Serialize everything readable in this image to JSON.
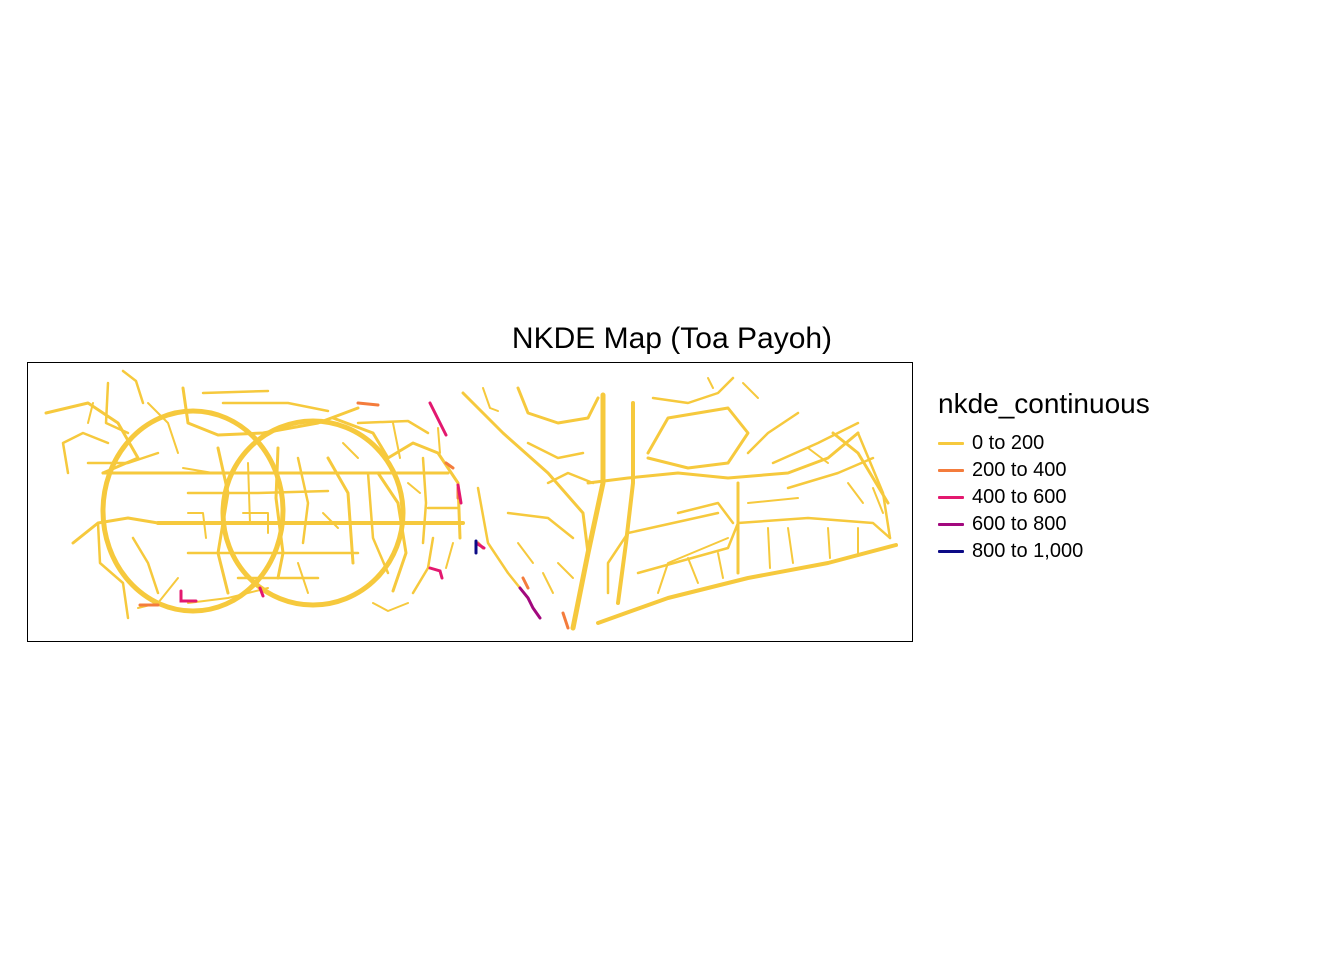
{
  "title": "NKDE Map (Toa Payoh)",
  "legend": {
    "title": "nkde_continuous",
    "items": [
      {
        "label": "0 to 200",
        "color": "#f6c93d"
      },
      {
        "label": "200 to 400",
        "color": "#f47c3c"
      },
      {
        "label": "400 to 600",
        "color": "#e3186f"
      },
      {
        "label": "600 to 800",
        "color": "#a2087e"
      },
      {
        "label": "800 to 1,000",
        "color": "#0c0b86"
      }
    ]
  },
  "colors": {
    "road_low": "#f6c93d",
    "road_mid_low": "#f47c3c",
    "road_mid": "#e3186f",
    "road_mid_high": "#a2087e",
    "road_high": "#0c0b86"
  }
}
